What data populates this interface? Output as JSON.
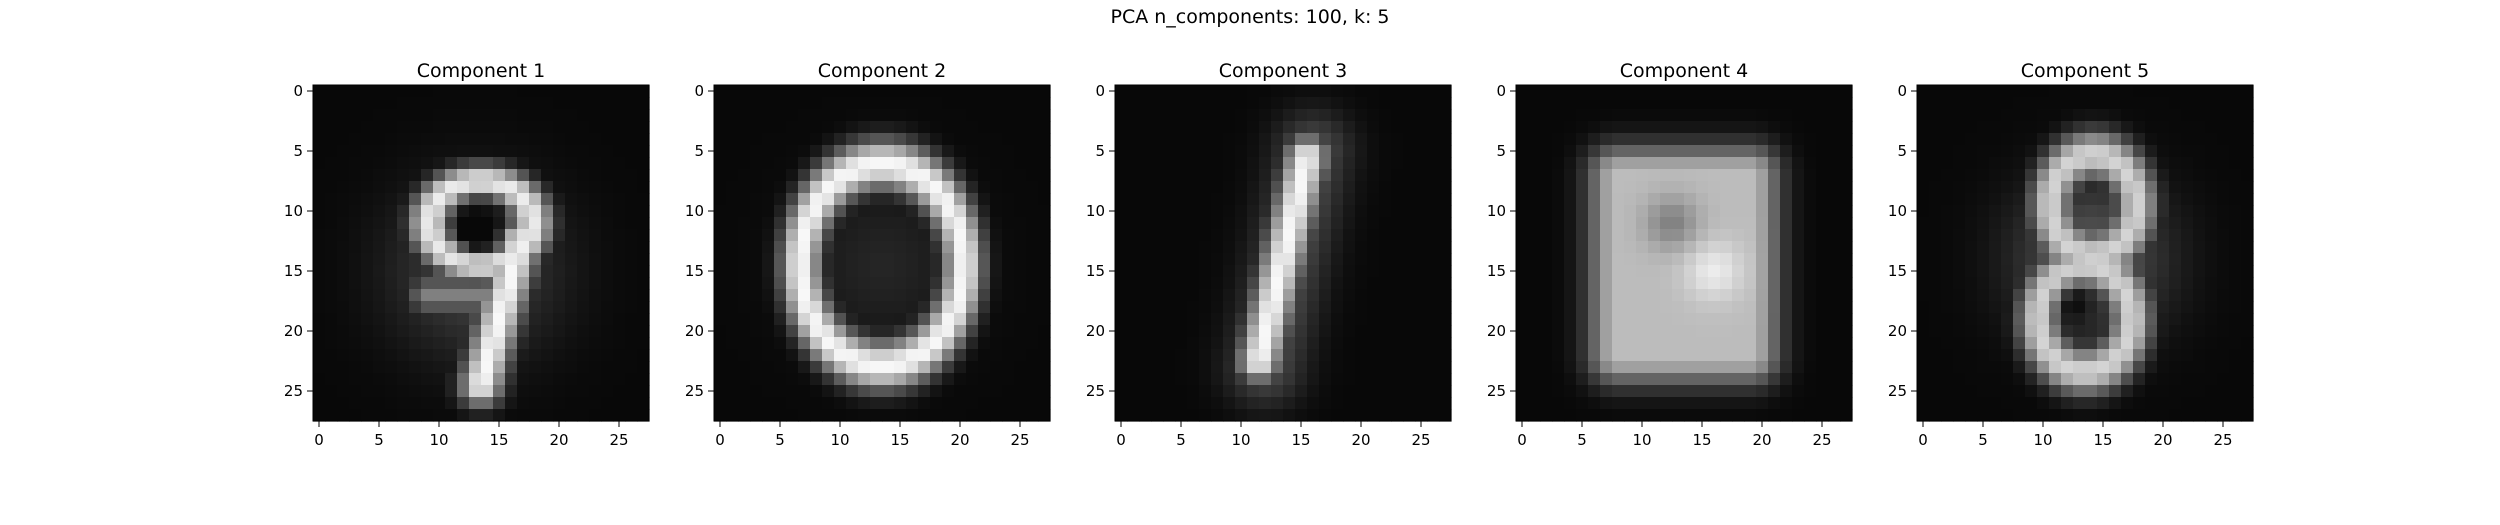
{
  "suptitle": "PCA n_components: 100, k: 5",
  "chart_data": [
    {
      "type": "heatmap",
      "title": "Component 1",
      "colormap": "gray",
      "grid": false,
      "image_size": [
        28,
        28
      ],
      "digit_shape": "9",
      "xticks": [
        "0",
        "5",
        "10",
        "15",
        "20",
        "25"
      ],
      "yticks": [
        "0",
        "5",
        "10",
        "15",
        "20",
        "25"
      ],
      "xlim": [
        -0.5,
        27.5
      ],
      "ylim": [
        27.5,
        -0.5
      ]
    },
    {
      "type": "heatmap",
      "title": "Component 2",
      "colormap": "gray",
      "grid": false,
      "image_size": [
        28,
        28
      ],
      "digit_shape": "0",
      "xticks": [
        "0",
        "5",
        "10",
        "15",
        "20",
        "25"
      ],
      "yticks": [
        "0",
        "5",
        "10",
        "15",
        "20",
        "25"
      ],
      "xlim": [
        -0.5,
        27.5
      ],
      "ylim": [
        27.5,
        -0.5
      ]
    },
    {
      "type": "heatmap",
      "title": "Component 3",
      "colormap": "gray",
      "grid": false,
      "image_size": [
        28,
        28
      ],
      "digit_shape": "1",
      "xticks": [
        "0",
        "5",
        "10",
        "15",
        "20",
        "25"
      ],
      "yticks": [
        "0",
        "5",
        "10",
        "15",
        "20",
        "25"
      ],
      "xlim": [
        -0.5,
        27.5
      ],
      "ylim": [
        27.5,
        -0.5
      ]
    },
    {
      "type": "heatmap",
      "title": "Component 4",
      "colormap": "gray",
      "grid": false,
      "image_size": [
        28,
        28
      ],
      "digit_shape": "blob",
      "xticks": [
        "0",
        "5",
        "10",
        "15",
        "20",
        "25"
      ],
      "yticks": [
        "0",
        "5",
        "10",
        "15",
        "20",
        "25"
      ],
      "xlim": [
        -0.5,
        27.5
      ],
      "ylim": [
        27.5,
        -0.5
      ]
    },
    {
      "type": "heatmap",
      "title": "Component 5",
      "colormap": "gray",
      "grid": false,
      "image_size": [
        28,
        28
      ],
      "digit_shape": "8",
      "xticks": [
        "0",
        "5",
        "10",
        "15",
        "20",
        "25"
      ],
      "yticks": [
        "0",
        "5",
        "10",
        "15",
        "20",
        "25"
      ],
      "xlim": [
        -0.5,
        27.5
      ],
      "ylim": [
        27.5,
        -0.5
      ]
    }
  ]
}
